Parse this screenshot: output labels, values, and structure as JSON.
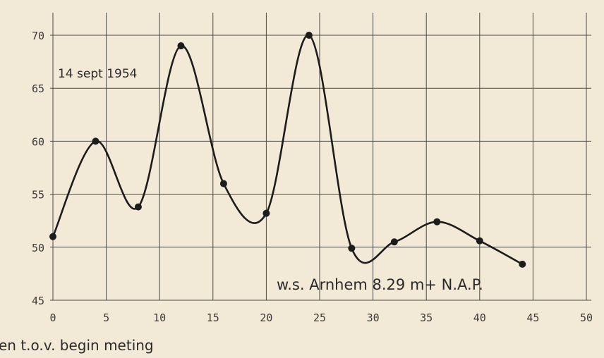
{
  "chart_data": {
    "type": "line",
    "x_ticks": [
      0,
      5,
      10,
      15,
      20,
      25,
      30,
      35,
      40,
      45,
      50
    ],
    "y_ticks": [
      45,
      50,
      55,
      60,
      65,
      70
    ],
    "xlim": [
      0,
      50
    ],
    "ylim": [
      45,
      70
    ],
    "grid": true,
    "xlabel": "en t.o.v. begin meting",
    "date_label": "14 sept 1954",
    "station_label": "w.s. Arnhem 8.29 m+ N.A.P.",
    "series": [
      {
        "x": [
          0,
          4,
          8,
          12,
          16,
          20,
          24,
          28,
          32,
          36,
          40,
          44
        ],
        "y": [
          51,
          60,
          53.8,
          69,
          56,
          53.2,
          70,
          49.9,
          50.5,
          52.4,
          50.6,
          48.4
        ]
      }
    ]
  }
}
